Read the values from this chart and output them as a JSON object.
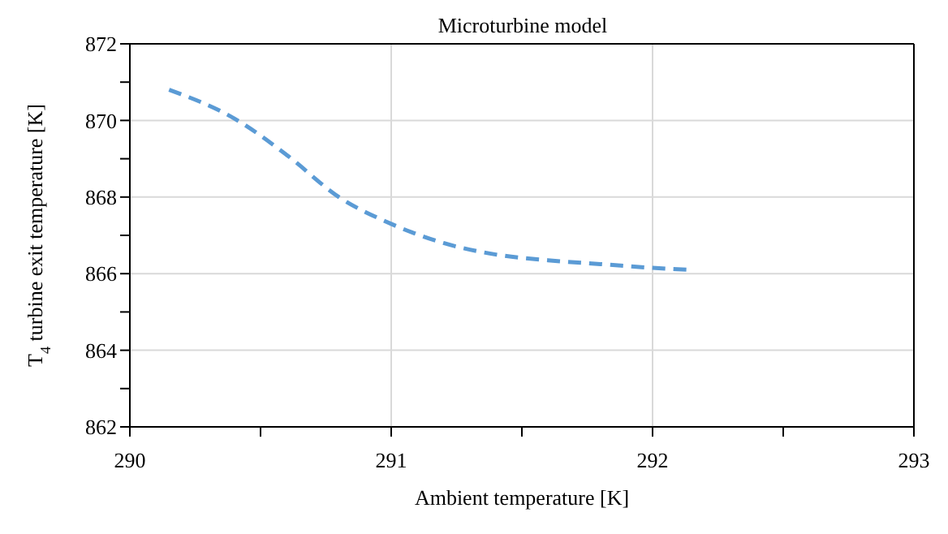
{
  "chart_data": {
    "type": "line",
    "title": "Microturbine model",
    "xlabel": "Ambient temperature [K]",
    "ylabel": "T$_{4}$ turbine exit temperature [K]",
    "xlim": [
      290,
      293
    ],
    "xticks": [
      290,
      {
        "value": 290.5,
        "label": null
      },
      291,
      {
        "value": 291.5,
        "label": null
      },
      292,
      {
        "value": 292.5,
        "label": null
      },
      293
    ],
    "ylim": [
      862,
      872
    ],
    "yticks": [
      862,
      {
        "value": 863,
        "label": null
      },
      864,
      {
        "value": 865,
        "label": null
      },
      866,
      {
        "value": 867,
        "label": null
      },
      868,
      {
        "value": 869,
        "label": null
      },
      870,
      {
        "value": 871,
        "label": null
      },
      872
    ],
    "grid": true,
    "line_style": "dashed",
    "marker": "none",
    "series": [
      {
        "color": "#5b9bd5",
        "x": [
          290.15,
          290.4,
          290.6,
          290.8,
          291.0,
          291.2,
          291.4,
          291.6,
          291.8,
          292.0,
          292.15
        ],
        "values": [
          870.8,
          870.05,
          869.1,
          868.0,
          867.3,
          866.8,
          866.5,
          866.35,
          866.25,
          866.15,
          866.1
        ]
      }
    ]
  }
}
